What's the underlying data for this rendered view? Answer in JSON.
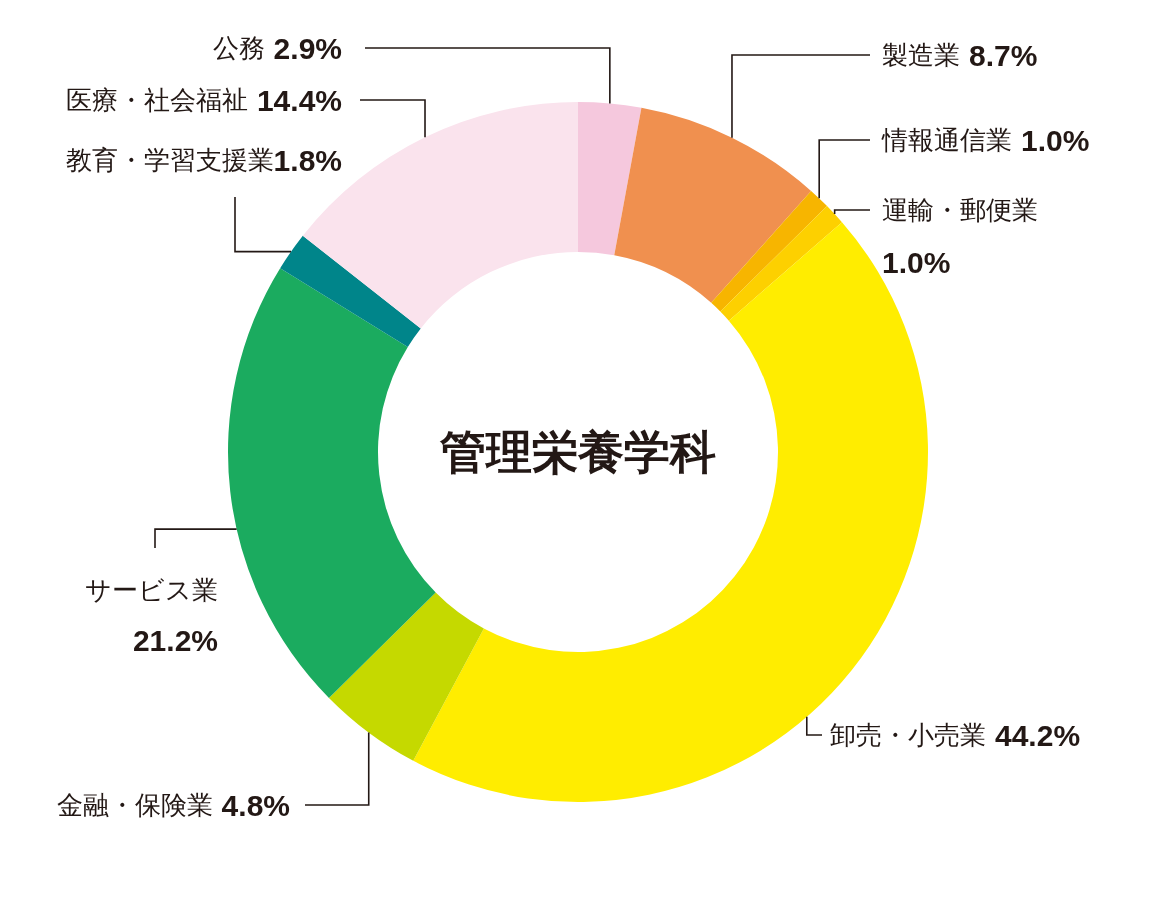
{
  "chart_data": {
    "type": "donut",
    "title": "管理栄養学科",
    "categories": [
      "公務",
      "製造業",
      "情報通信業",
      "運輸・郵便業",
      "卸売・小売業",
      "金融・保険業",
      "サービス業",
      "教育・学習支援業",
      "医療・社会福祉"
    ],
    "values": [
      2.9,
      8.7,
      1.0,
      1.0,
      44.2,
      4.8,
      21.2,
      1.8,
      14.4
    ],
    "colors": [
      "#f5c8dd",
      "#f0904f",
      "#f7b500",
      "#fdd000",
      "#ffed00",
      "#c5d900",
      "#1bab5f",
      "#00858a",
      "#fae3ed"
    ],
    "value_labels": [
      "2.9%",
      "8.7%",
      "1.0%",
      "1.0%",
      "44.2%",
      "4.8%",
      "21.2%",
      "1.8%",
      "14.4%"
    ]
  }
}
